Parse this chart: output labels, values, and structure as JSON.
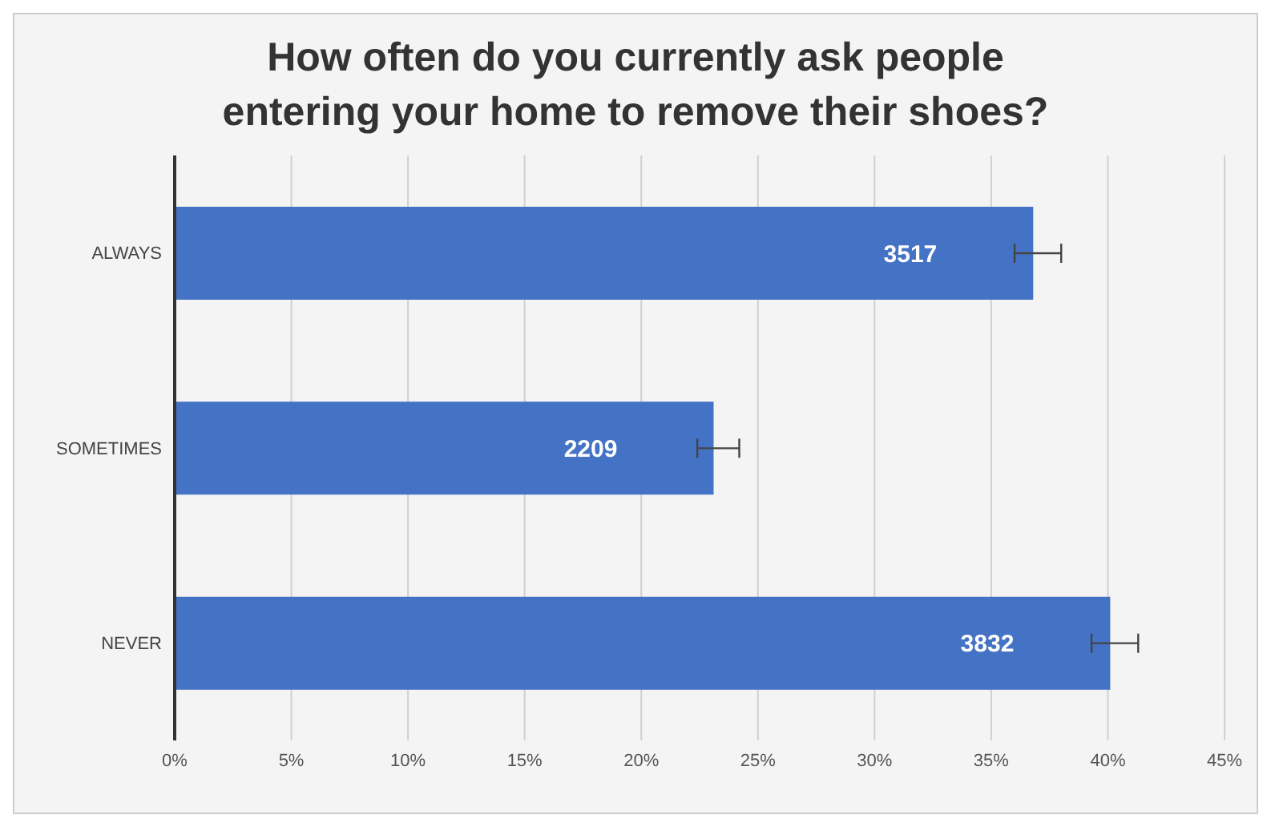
{
  "chart_data": {
    "type": "bar",
    "orientation": "horizontal",
    "title": "How often do you currently ask people entering your home to remove their shoes?",
    "categories": [
      "ALWAYS",
      "SOMETIMES",
      "NEVER"
    ],
    "values": [
      36.8,
      23.1,
      40.1
    ],
    "color": "#4472c4",
    "errors": [
      [
        36.0,
        38.0
      ],
      [
        22.4,
        24.2
      ],
      [
        39.3,
        41.3
      ]
    ],
    "annotations": [
      "3517",
      "2209",
      "3832"
    ],
    "xlim": [
      0,
      45
    ],
    "xticks": [
      {
        "value": 0,
        "label": "0%"
      },
      {
        "value": 5,
        "label": "5%"
      },
      {
        "value": 10,
        "label": "10%"
      },
      {
        "value": 15,
        "label": "15%"
      },
      {
        "value": 20,
        "label": "20%"
      },
      {
        "value": 25,
        "label": "25%"
      },
      {
        "value": 30,
        "label": "30%"
      },
      {
        "value": 35,
        "label": "35%"
      },
      {
        "value": 40,
        "label": "40%"
      },
      {
        "value": 45,
        "label": "45%"
      }
    ],
    "grid": "x",
    "legend": false
  }
}
